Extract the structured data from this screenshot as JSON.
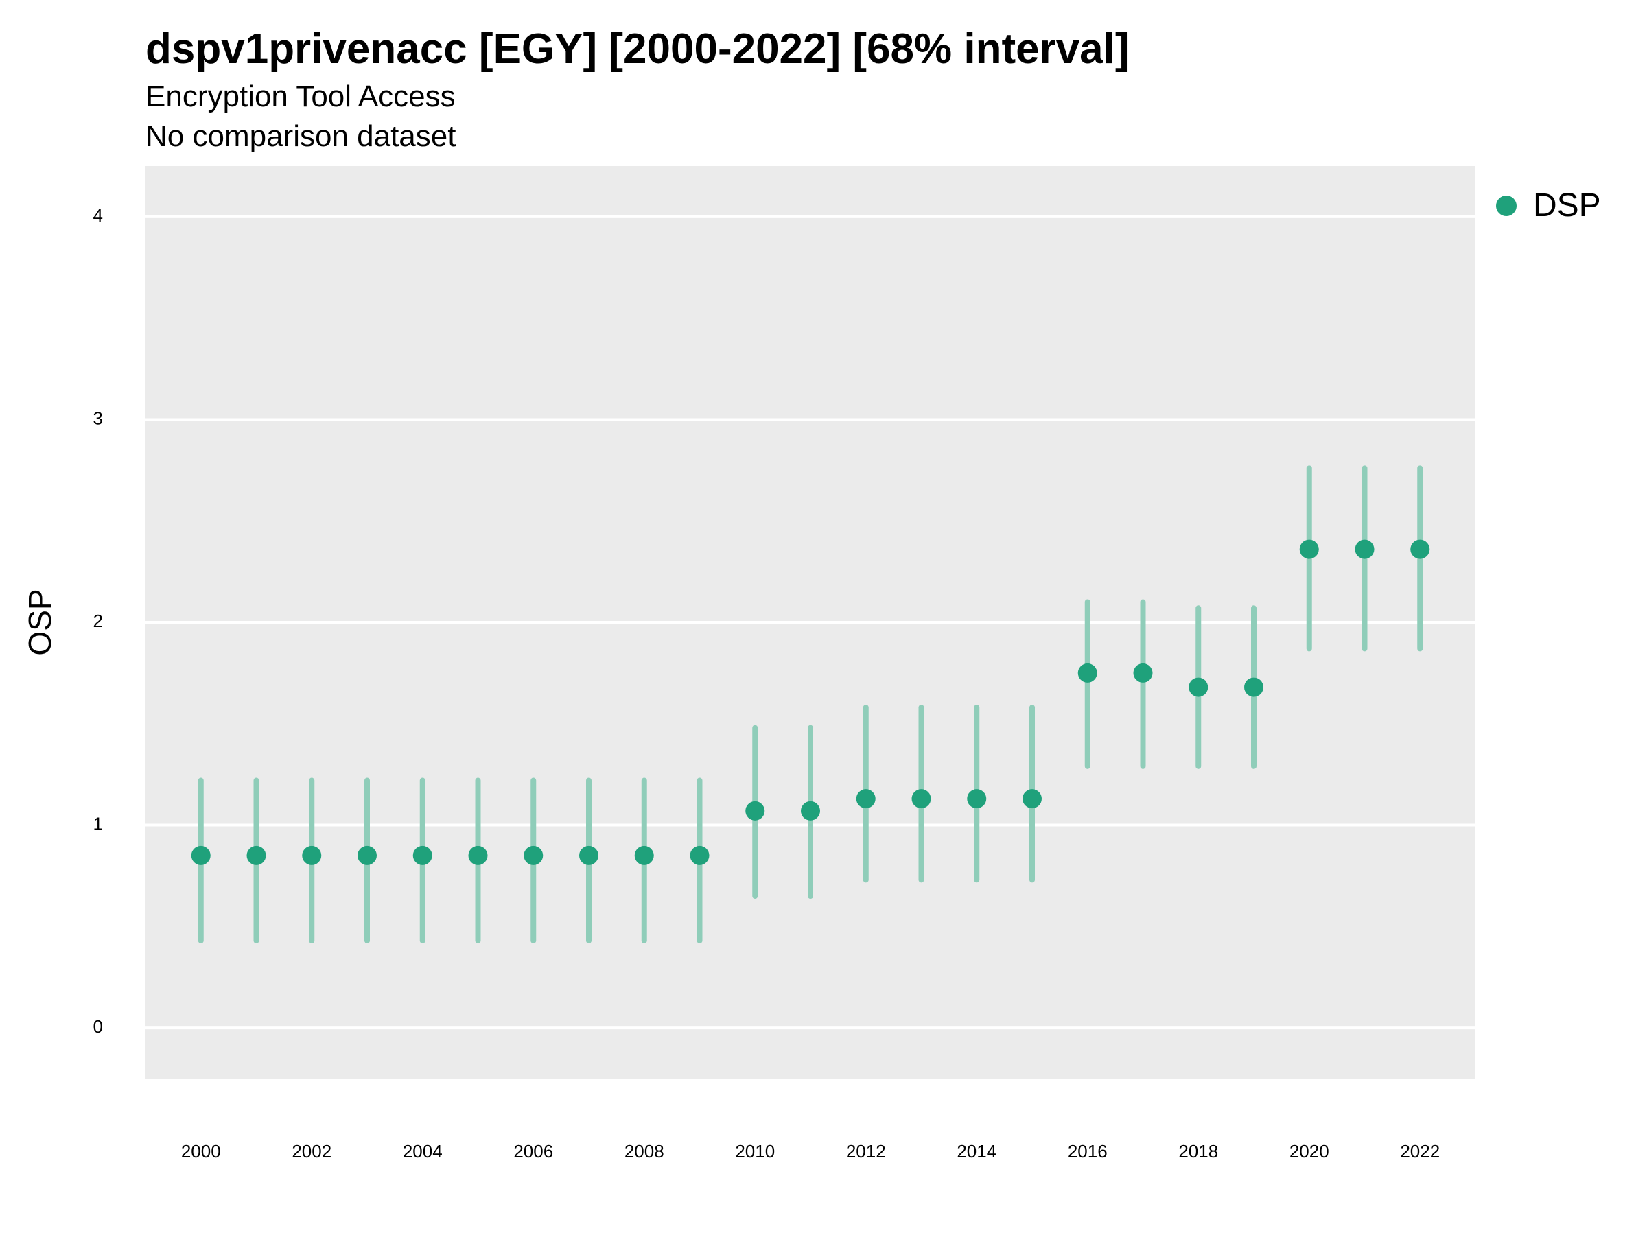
{
  "title": "dspv1privenacc [EGY] [2000-2022] [68% interval]",
  "subtitle": "Encryption Tool Access",
  "caption": "No comparison dataset",
  "colors": {
    "point": "#1fa17b",
    "interval": "#8fcdb9",
    "panel": "#ebebeb",
    "grid": "#ffffff"
  },
  "chart_data": {
    "type": "scatter",
    "ylabel": "OSP",
    "xlabel": "",
    "ylim": [
      -0.25,
      4.25
    ],
    "xlim": [
      1999,
      2023
    ],
    "yticks": [
      0,
      1,
      2,
      3,
      4
    ],
    "xticks": [
      2000,
      2002,
      2004,
      2006,
      2008,
      2010,
      2012,
      2014,
      2016,
      2018,
      2020,
      2022
    ],
    "grid": true,
    "legend_position": "right",
    "series": [
      {
        "name": "DSP",
        "x": [
          2000,
          2001,
          2002,
          2003,
          2004,
          2005,
          2006,
          2007,
          2008,
          2009,
          2010,
          2011,
          2012,
          2013,
          2014,
          2015,
          2016,
          2017,
          2018,
          2019,
          2020,
          2021,
          2022
        ],
        "y": [
          0.85,
          0.85,
          0.85,
          0.85,
          0.85,
          0.85,
          0.85,
          0.85,
          0.85,
          0.85,
          1.07,
          1.07,
          1.13,
          1.13,
          1.13,
          1.13,
          1.75,
          1.75,
          1.68,
          1.68,
          2.36,
          2.36,
          2.36
        ],
        "lower": [
          0.43,
          0.43,
          0.43,
          0.43,
          0.43,
          0.43,
          0.43,
          0.43,
          0.43,
          0.43,
          0.65,
          0.65,
          0.73,
          0.73,
          0.73,
          0.73,
          1.29,
          1.29,
          1.29,
          1.29,
          1.87,
          1.87,
          1.87
        ],
        "upper": [
          1.22,
          1.22,
          1.22,
          1.22,
          1.22,
          1.22,
          1.22,
          1.22,
          1.22,
          1.22,
          1.48,
          1.48,
          1.58,
          1.58,
          1.58,
          1.58,
          2.1,
          2.1,
          2.07,
          2.07,
          2.76,
          2.76,
          2.76
        ]
      }
    ]
  }
}
